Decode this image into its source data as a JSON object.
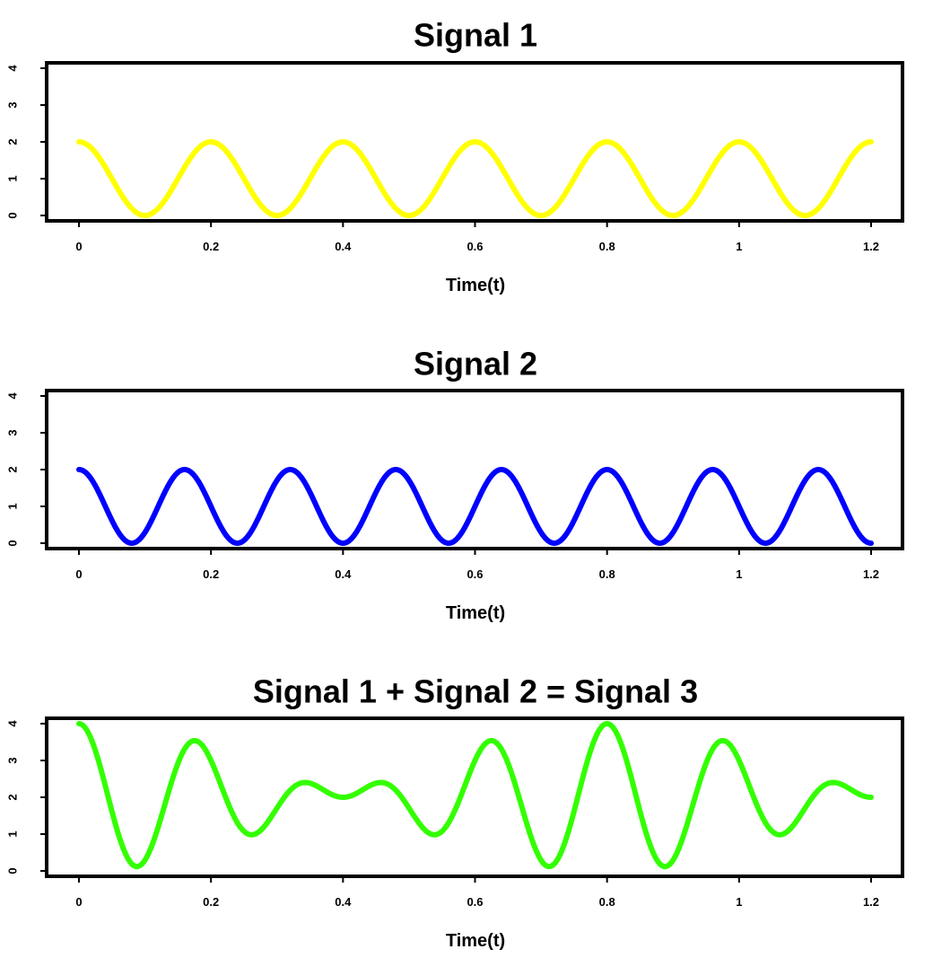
{
  "chart_data": [
    {
      "type": "line",
      "title": "Signal 1",
      "xlabel": "Time(t)",
      "ylabel": "",
      "xlim": [
        0,
        1.2
      ],
      "ylim": [
        0,
        4
      ],
      "xticks": [
        0,
        0.2,
        0.4,
        0.6,
        0.8,
        1,
        1.2
      ],
      "yticks": [
        0,
        1,
        2,
        3,
        4
      ],
      "grid": false,
      "series": [
        {
          "color": "#ffff00",
          "formula": "1 + cos(2*pi*5*t)",
          "x": [
            0,
            0.05,
            0.1,
            0.15,
            0.2,
            0.25,
            0.3,
            0.35,
            0.4,
            0.45,
            0.5,
            0.55,
            0.6,
            0.65,
            0.7,
            0.75,
            0.8,
            0.85,
            0.9,
            0.95,
            1.0,
            1.05,
            1.1,
            1.15,
            1.2
          ],
          "values": [
            2,
            1,
            0,
            1,
            2,
            1,
            0,
            1,
            2,
            1,
            0,
            1,
            2,
            1,
            0,
            1,
            2,
            1,
            0,
            1,
            2,
            1,
            0,
            1,
            2
          ]
        }
      ]
    },
    {
      "type": "line",
      "title": "Signal 2",
      "xlabel": "Time(t)",
      "ylabel": "",
      "xlim": [
        0,
        1.2
      ],
      "ylim": [
        0,
        4
      ],
      "xticks": [
        0,
        0.2,
        0.4,
        0.6,
        0.8,
        1,
        1.2
      ],
      "yticks": [
        0,
        1,
        2,
        3,
        4
      ],
      "grid": false,
      "series": [
        {
          "color": "#0000ff",
          "formula": "1 + cos(2*pi*6.25*t)",
          "x": [
            0,
            0.04,
            0.08,
            0.12,
            0.16,
            0.2,
            0.24,
            0.28,
            0.32,
            0.36,
            0.4,
            0.44,
            0.48,
            0.52,
            0.56,
            0.6,
            0.64,
            0.68,
            0.72,
            0.76,
            0.8,
            0.84,
            0.88,
            0.92,
            0.96,
            1.0,
            1.04,
            1.08,
            1.12,
            1.16,
            1.2
          ],
          "values": [
            2,
            1,
            0,
            1,
            2,
            1,
            0,
            1,
            2,
            1,
            0,
            1,
            2,
            1,
            0,
            1,
            2,
            1,
            0,
            1,
            2,
            1,
            0,
            1,
            2,
            1,
            0,
            1,
            2,
            1,
            0
          ]
        }
      ]
    },
    {
      "type": "line",
      "title": "Signal 1 + Signal 2 = Signal 3",
      "xlabel": "Time(t)",
      "ylabel": "",
      "xlim": [
        0,
        1.2
      ],
      "ylim": [
        0,
        4
      ],
      "xticks": [
        0,
        0.2,
        0.4,
        0.6,
        0.8,
        1,
        1.2
      ],
      "yticks": [
        0,
        1,
        2,
        3,
        4
      ],
      "grid": false,
      "series": [
        {
          "color": "#33ff00",
          "formula": "2 + cos(2*pi*5*t) + cos(2*pi*6.25*t)",
          "x": [
            0,
            0.09,
            0.175,
            0.26,
            0.345,
            0.4,
            0.455,
            0.54,
            0.625,
            0.71,
            0.8,
            0.89,
            0.975,
            1.06,
            1.145,
            1.2
          ],
          "values": [
            4,
            0.1,
            3.55,
            1.0,
            2.4,
            2.0,
            2.4,
            1.0,
            3.55,
            0.1,
            4,
            0.1,
            3.55,
            1.0,
            2.4,
            2.0
          ]
        }
      ]
    }
  ]
}
